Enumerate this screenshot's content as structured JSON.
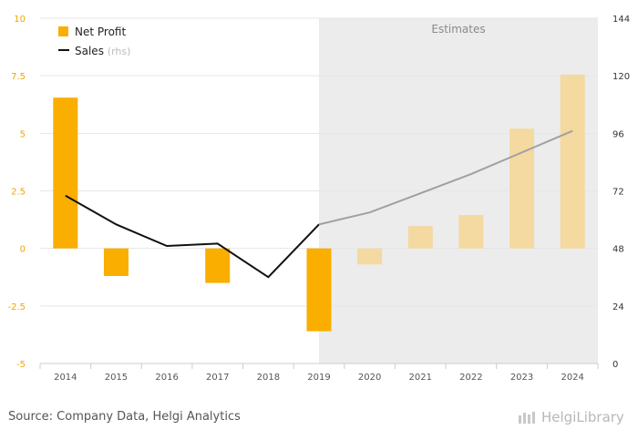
{
  "chart_data": {
    "type": "bar",
    "categories": [
      "2014",
      "2015",
      "2016",
      "2017",
      "2018",
      "2019",
      "2020",
      "2021",
      "2022",
      "2023",
      "2024"
    ],
    "series": [
      {
        "name": "Net Profit",
        "type": "bar",
        "axis": "left",
        "values": [
          6.55,
          -1.2,
          null,
          -1.5,
          null,
          -3.6,
          -0.7,
          0.97,
          1.45,
          5.2,
          7.55
        ],
        "color": "#f9ae00",
        "estimate_color": "#f4d9a0"
      },
      {
        "name": "Sales",
        "type": "line",
        "axis": "right",
        "values": [
          70,
          58,
          49,
          50,
          36,
          58,
          63,
          71,
          79,
          88,
          97
        ],
        "color": "#111111",
        "estimate_color": "#a0a0a0"
      }
    ],
    "estimates_from": "2019",
    "estimates_label": "Estimates",
    "left_axis": {
      "ticks": [
        "10",
        "7.5",
        "5",
        "2.5",
        "0",
        "-2.5",
        "-5"
      ],
      "ylim": [
        -5,
        10
      ]
    },
    "right_axis": {
      "ticks": [
        "144",
        "120",
        "96",
        "72",
        "48",
        "24",
        "0"
      ],
      "ylim": [
        0,
        144
      ]
    },
    "legend": {
      "position": "top-left",
      "items": [
        {
          "label": "Net Profit"
        },
        {
          "label": "Sales",
          "suffix": "(rhs)"
        }
      ]
    },
    "grid": true
  },
  "footer": {
    "source": "Source: Company Data, Helgi Analytics",
    "logo": "HelgiLibrary"
  },
  "colors": {
    "bar": "#f9ae00",
    "bar_estimate": "#f4d9a0",
    "line": "#111111",
    "line_estimate": "#a0a0a0",
    "estimates_bg": "#ececec",
    "left_tick": "#f0a500"
  }
}
